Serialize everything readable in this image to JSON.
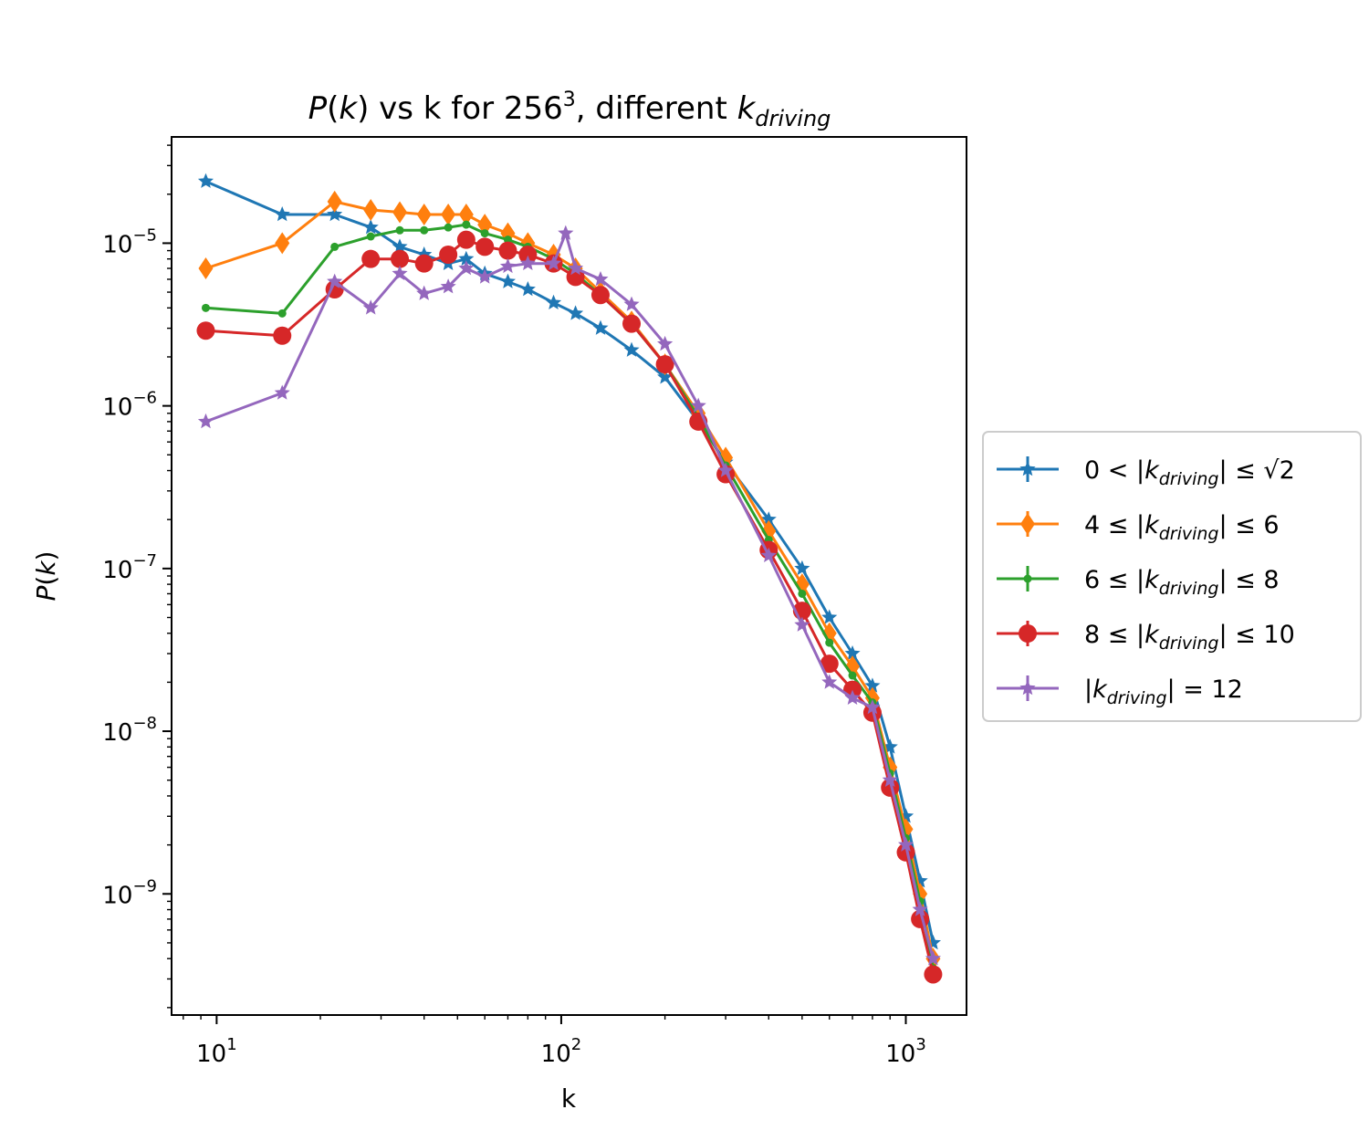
{
  "chart_data": {
    "type": "line",
    "title": "P(k) vs k for 256³, different k_driving",
    "title_parts": {
      "p": "P",
      "open": "(",
      "k": "k",
      "mid": ") vs k for 256",
      "sup": "3",
      "tail": ", different ",
      "kd": "k",
      "kd_sub": "driving"
    },
    "xlabel": "k",
    "ylabel": "P(k)",
    "ylabel_parts": {
      "p": "P",
      "open": "(",
      "k": "k",
      "close": ")"
    },
    "x_scale": "log",
    "y_scale": "log",
    "xlim": [
      7.4,
      1500
    ],
    "ylim": [
      1.8e-10,
      4.5e-05
    ],
    "x_ticks": [
      {
        "base": "10",
        "exp": "1",
        "value": 10
      },
      {
        "base": "10",
        "exp": "2",
        "value": 100
      },
      {
        "base": "10",
        "exp": "3",
        "value": 1000
      }
    ],
    "y_ticks": [
      {
        "base": "10",
        "exp": "−9",
        "value": 1e-09
      },
      {
        "base": "10",
        "exp": "−8",
        "value": 1e-08
      },
      {
        "base": "10",
        "exp": "−7",
        "value": 1e-07
      },
      {
        "base": "10",
        "exp": "−6",
        "value": 1e-06
      },
      {
        "base": "10",
        "exp": "−5",
        "value": 1e-05
      }
    ],
    "grid": false,
    "legend_position": "outside-right",
    "series": [
      {
        "name": "0 < |k_driving| ≤ √2",
        "label_parts": {
          "pre": "0 < |",
          "k": "k",
          "sub": "driving",
          "post": "| ≤ √2"
        },
        "color": "#1f77b4",
        "marker": "star",
        "x": [
          9.3,
          15.5,
          22,
          28,
          34,
          40,
          47,
          53,
          60,
          70,
          80,
          95,
          110,
          130,
          160,
          200,
          250,
          300,
          400,
          500,
          600,
          700,
          800,
          900,
          1000,
          1100,
          1200
        ],
        "y": [
          2.4e-05,
          1.5e-05,
          1.5e-05,
          1.25e-05,
          9.5e-06,
          8.5e-06,
          7.5e-06,
          8e-06,
          6.5e-06,
          5.8e-06,
          5.2e-06,
          4.3e-06,
          3.7e-06,
          3e-06,
          2.2e-06,
          1.5e-06,
          8e-07,
          4.5e-07,
          2e-07,
          1e-07,
          5e-08,
          3e-08,
          1.9e-08,
          8e-09,
          3e-09,
          1.2e-09,
          5e-10
        ]
      },
      {
        "name": "4 ≤ |k_driving| ≤ 6",
        "label_parts": {
          "pre": "4 ≤ |",
          "k": "k",
          "sub": "driving",
          "post": "| ≤ 6"
        },
        "color": "#ff7f0e",
        "marker": "diamond",
        "x": [
          9.3,
          15.5,
          22,
          28,
          34,
          40,
          47,
          53,
          60,
          70,
          80,
          95,
          110,
          130,
          160,
          200,
          250,
          300,
          400,
          500,
          600,
          700,
          800,
          900,
          1000,
          1100,
          1200
        ],
        "y": [
          7e-06,
          1e-05,
          1.8e-05,
          1.6e-05,
          1.55e-05,
          1.5e-05,
          1.5e-05,
          1.5e-05,
          1.3e-05,
          1.15e-05,
          1e-05,
          8.5e-06,
          7e-06,
          5e-06,
          3.3e-06,
          1.8e-06,
          9e-07,
          4.8e-07,
          1.7e-07,
          8e-08,
          4e-08,
          2.5e-08,
          1.6e-08,
          6e-09,
          2.5e-09,
          1e-09,
          4e-10
        ]
      },
      {
        "name": "6 ≤ |k_driving| ≤ 8",
        "label_parts": {
          "pre": "6 ≤ |",
          "k": "k",
          "sub": "driving",
          "post": "| ≤ 8"
        },
        "color": "#2ca02c",
        "marker": "point",
        "x": [
          9.3,
          15.5,
          22,
          28,
          34,
          40,
          47,
          53,
          60,
          70,
          80,
          95,
          110,
          130,
          160,
          200,
          250,
          300,
          400,
          500,
          600,
          700,
          800,
          900,
          1000,
          1100,
          1200
        ],
        "y": [
          4e-06,
          3.7e-06,
          9.5e-06,
          1.1e-05,
          1.2e-05,
          1.2e-05,
          1.25e-05,
          1.3e-05,
          1.15e-05,
          1.05e-05,
          9.5e-06,
          8e-06,
          6.5e-06,
          4.8e-06,
          3.2e-06,
          1.8e-06,
          8.5e-07,
          4.3e-07,
          1.5e-07,
          7e-08,
          3.5e-08,
          2.2e-08,
          1.5e-08,
          5.5e-09,
          2.2e-09,
          9e-10,
          3.5e-10
        ]
      },
      {
        "name": "8 ≤ |k_driving| ≤ 10",
        "label_parts": {
          "pre": "8 ≤ |",
          "k": "k",
          "sub": "driving",
          "post": "| ≤ 10"
        },
        "color": "#d62728",
        "marker": "circle",
        "x": [
          9.3,
          15.5,
          22,
          28,
          34,
          40,
          47,
          53,
          60,
          70,
          80,
          95,
          110,
          130,
          160,
          200,
          250,
          300,
          400,
          500,
          600,
          700,
          800,
          900,
          1000,
          1100,
          1200
        ],
        "y": [
          2.9e-06,
          2.7e-06,
          5.2e-06,
          8e-06,
          8e-06,
          7.5e-06,
          8.5e-06,
          1.05e-05,
          9.5e-06,
          9e-06,
          8.5e-06,
          7.5e-06,
          6.2e-06,
          4.8e-06,
          3.2e-06,
          1.8e-06,
          8e-07,
          3.8e-07,
          1.3e-07,
          5.5e-08,
          2.6e-08,
          1.8e-08,
          1.3e-08,
          4.5e-09,
          1.8e-09,
          7e-10,
          3.2e-10
        ]
      },
      {
        "name": "|k_driving| = 12",
        "label_parts": {
          "pre": "|",
          "k": "k",
          "sub": "driving",
          "post": "| = 12"
        },
        "color": "#9467bd",
        "marker": "star",
        "x": [
          9.3,
          15.5,
          22,
          28,
          34,
          40,
          47,
          53,
          60,
          70,
          80,
          95,
          103,
          110,
          130,
          160,
          200,
          250,
          300,
          400,
          500,
          600,
          700,
          800,
          900,
          1000,
          1100,
          1200
        ],
        "y": [
          8e-07,
          1.2e-06,
          5.8e-06,
          4e-06,
          6.5e-06,
          4.9e-06,
          5.4e-06,
          7e-06,
          6.2e-06,
          7.2e-06,
          7.5e-06,
          7.5e-06,
          1.15e-05,
          7e-06,
          6e-06,
          4.2e-06,
          2.4e-06,
          1e-06,
          4e-07,
          1.2e-07,
          4.5e-08,
          2e-08,
          1.6e-08,
          1.4e-08,
          5e-09,
          2e-09,
          8e-10,
          4e-10
        ]
      }
    ]
  }
}
